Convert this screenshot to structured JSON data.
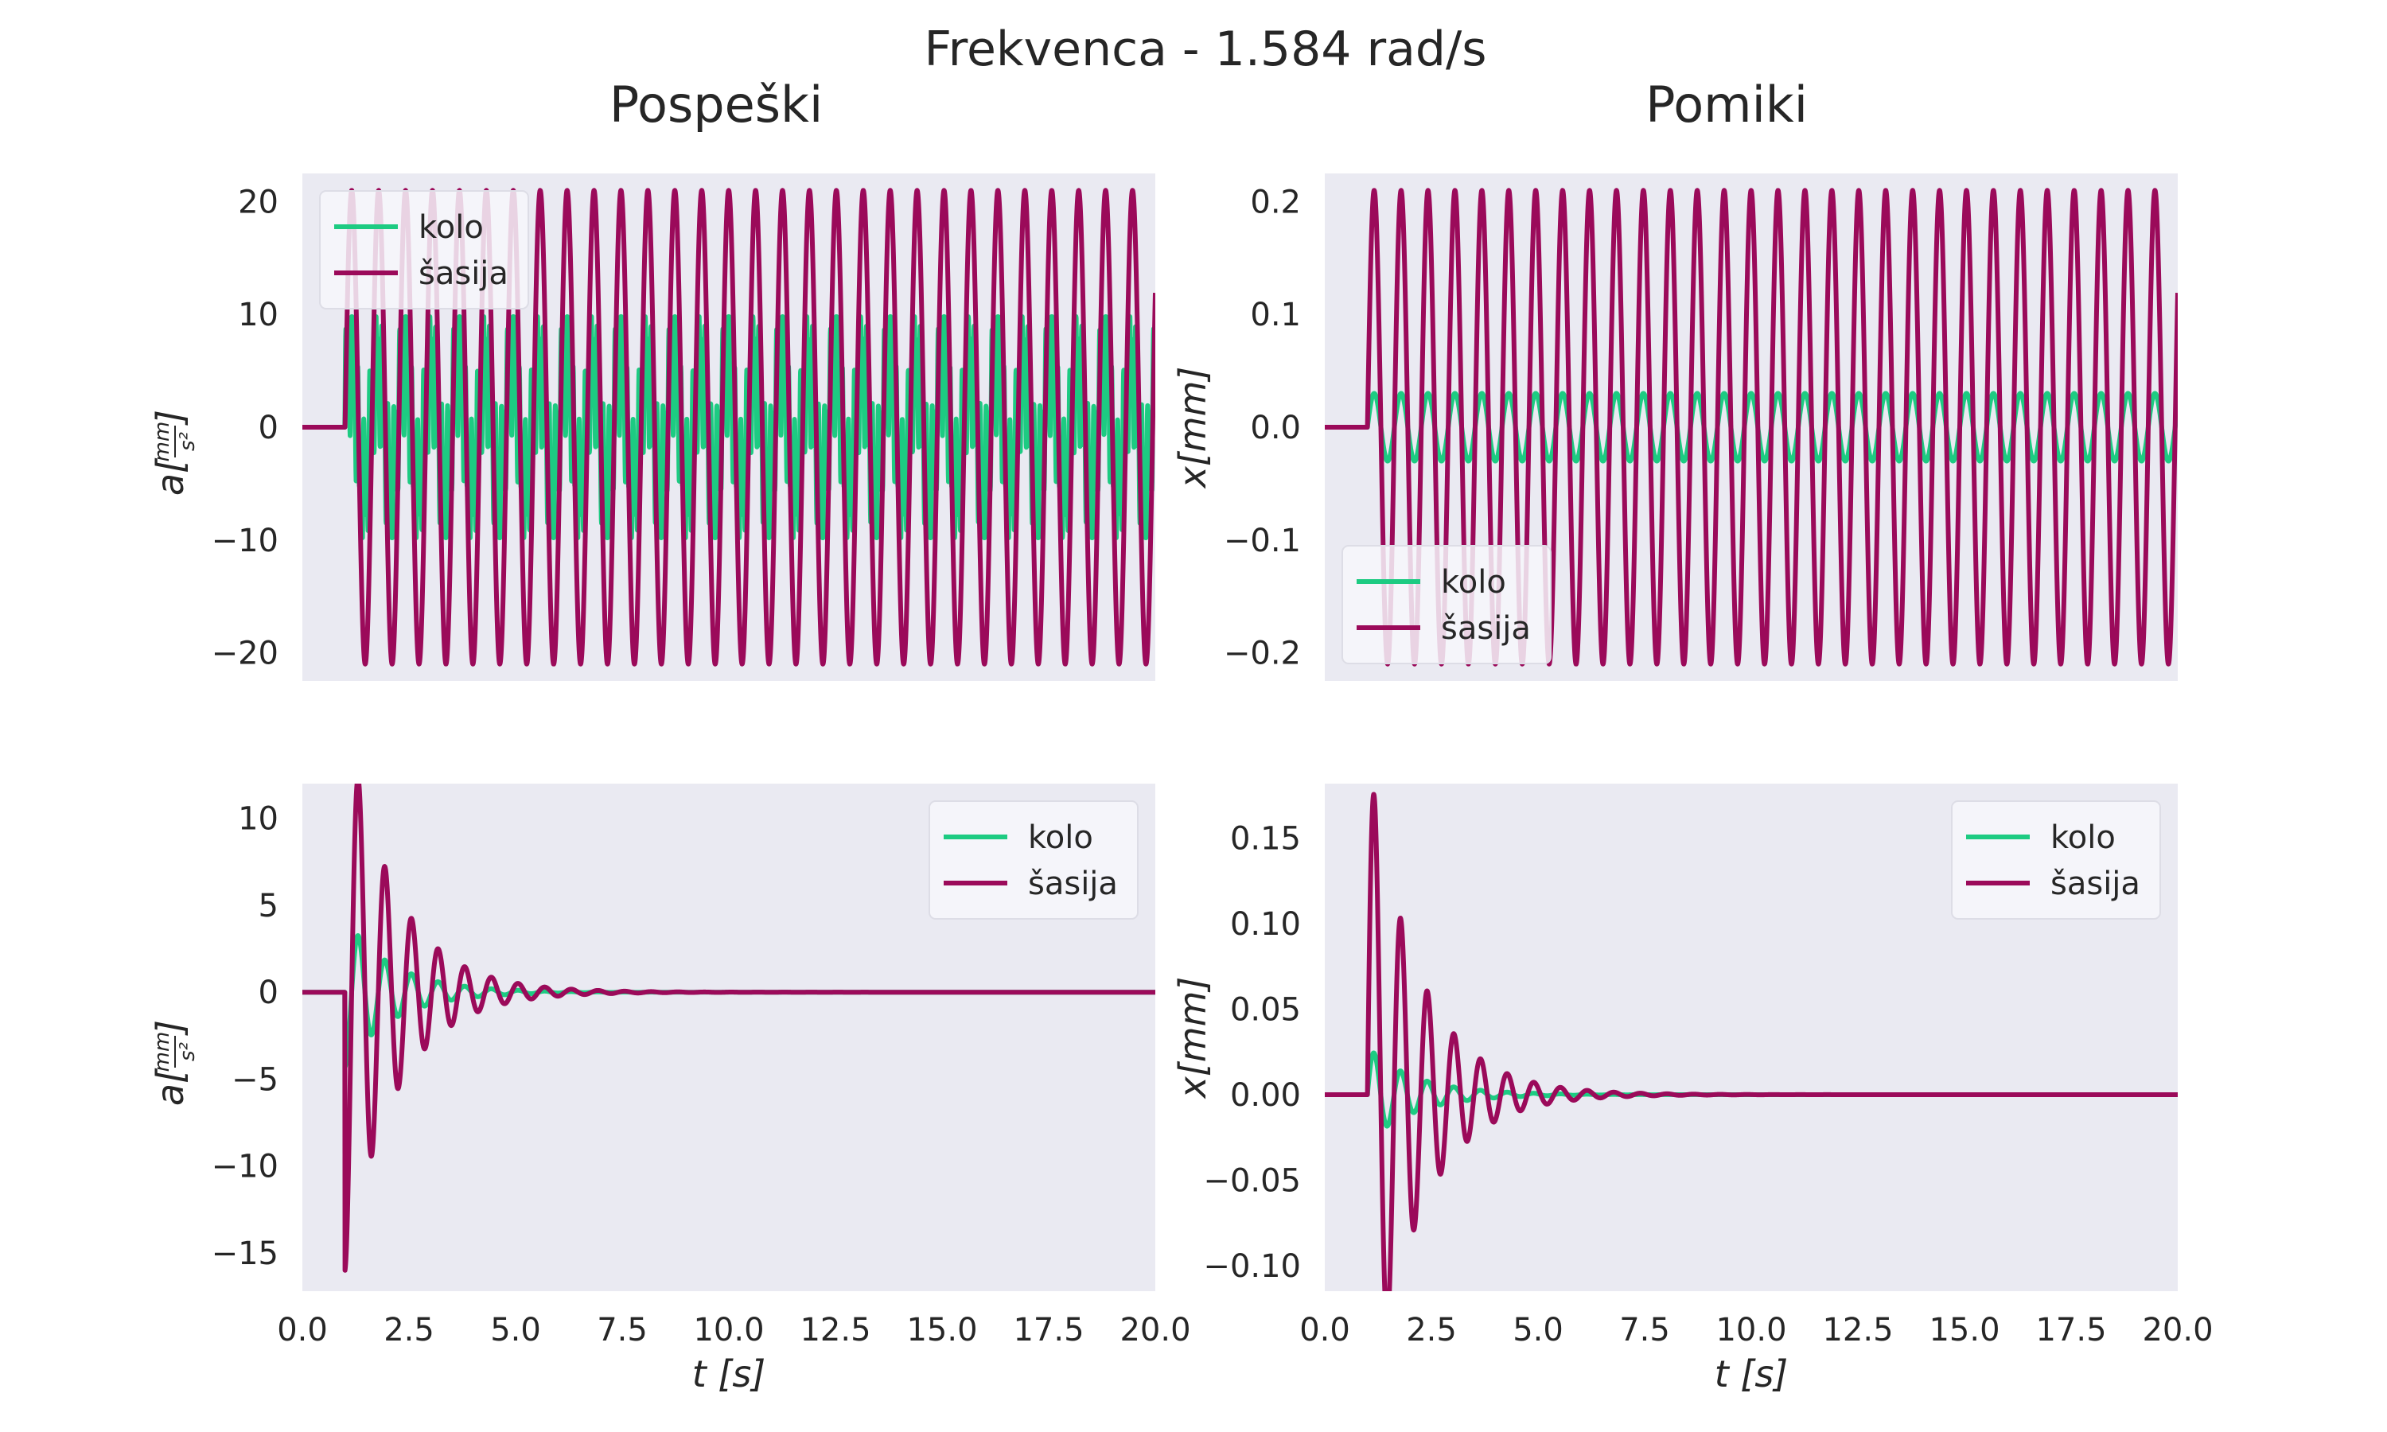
{
  "figure": {
    "suptitle": "Frekvenca - 1.584 rad/s",
    "col_titles": [
      "Pospeški",
      "Pomiki"
    ],
    "colors": {
      "background": "#ffffff",
      "axes_face": "#eaeaf2",
      "kolo": "#1dcb82",
      "sasija": "#9b0a5a",
      "text": "#262626",
      "legend_face": "#f7f7fb"
    }
  },
  "chart_data": [
    {
      "id": "top-left",
      "type": "line",
      "title": "",
      "ylabel_text": "a[",
      "ylabel_num": "mm",
      "ylabel_den": "s²",
      "ylabel_end": "]",
      "xlabel": "",
      "xlim": [
        0,
        20
      ],
      "ylim": [
        -22.5,
        22.5
      ],
      "xticks": [
        "0.0",
        "2.5",
        "5.0",
        "7.5",
        "10.0",
        "12.5",
        "15.0",
        "17.5",
        "20.0"
      ],
      "yticks": [
        -20,
        -10,
        0,
        10,
        20
      ],
      "ytick_labels": [
        "−20",
        "−10",
        "0",
        "10",
        "20"
      ],
      "show_xticklabels": false,
      "grid": false,
      "legend": {
        "placement": "top-left",
        "entries": [
          "kolo",
          "šasija"
        ]
      },
      "series": [
        {
          "name": "kolo",
          "model": "steady",
          "t0": 1.0,
          "amplitude": 9.8,
          "frequency_hz": 1.584,
          "phase": 0.3,
          "inner_amplitude": 5.5
        },
        {
          "name": "šasija",
          "model": "steady",
          "t0": 1.0,
          "amplitude": 21.0,
          "frequency_hz": 1.584,
          "phase": 0.0
        }
      ]
    },
    {
      "id": "top-right",
      "type": "line",
      "title": "",
      "ylabel_text": "x[mm]",
      "xlabel": "",
      "xlim": [
        0,
        20
      ],
      "ylim": [
        -0.225,
        0.225
      ],
      "xticks": [
        "0.0",
        "2.5",
        "5.0",
        "7.5",
        "10.0",
        "12.5",
        "15.0",
        "17.5",
        "20.0"
      ],
      "yticks": [
        -0.2,
        -0.1,
        0.0,
        0.1,
        0.2
      ],
      "ytick_labels": [
        "−0.2",
        "−0.1",
        "0.0",
        "0.1",
        "0.2"
      ],
      "show_xticklabels": false,
      "grid": false,
      "legend": {
        "placement": "lower-left",
        "entries": [
          "kolo",
          "šasija"
        ]
      },
      "series": [
        {
          "name": "kolo",
          "model": "steady-sin",
          "t0": 1.0,
          "amplitude": 0.03,
          "frequency_hz": 1.584,
          "phase": 0.0
        },
        {
          "name": "šasija",
          "model": "steady-sin",
          "t0": 1.0,
          "amplitude": 0.21,
          "frequency_hz": 1.584,
          "phase": 0.0
        }
      ]
    },
    {
      "id": "bottom-left",
      "type": "line",
      "title": "",
      "ylabel_text": "a[",
      "ylabel_num": "mm",
      "ylabel_den": "s²",
      "ylabel_end": "]",
      "xlabel": "t [s]",
      "xlim": [
        0,
        20
      ],
      "ylim": [
        -17.2,
        12.0
      ],
      "xticks": [
        "0.0",
        "2.5",
        "5.0",
        "7.5",
        "10.0",
        "12.5",
        "15.0",
        "17.5",
        "20.0"
      ],
      "yticks": [
        -15,
        -10,
        -5,
        0,
        5,
        10
      ],
      "ytick_labels": [
        "−15",
        "−10",
        "−5",
        "0",
        "5",
        "10"
      ],
      "show_xticklabels": true,
      "grid": false,
      "legend": {
        "placement": "top-right",
        "entries": [
          "kolo",
          "šasija"
        ]
      },
      "series": [
        {
          "name": "kolo",
          "model": "decay",
          "t0": 1.0,
          "amplitude": 4.3,
          "frequency_hz": 1.6,
          "damping": 0.9,
          "phase": 1.57
        },
        {
          "name": "šasija",
          "model": "decay",
          "t0": 1.0,
          "amplitude": 16.0,
          "frequency_hz": 1.6,
          "damping": 0.85,
          "phase": 1.57
        }
      ]
    },
    {
      "id": "bottom-right",
      "type": "line",
      "title": "",
      "ylabel_text": "x[mm]",
      "xlabel": "t [s]",
      "xlim": [
        0,
        20
      ],
      "ylim": [
        -0.115,
        0.182
      ],
      "xticks": [
        "0.0",
        "2.5",
        "5.0",
        "7.5",
        "10.0",
        "12.5",
        "15.0",
        "17.5",
        "20.0"
      ],
      "yticks": [
        -0.1,
        -0.05,
        0.0,
        0.05,
        0.1,
        0.15
      ],
      "ytick_labels": [
        "−0.10",
        "−0.05",
        "0.00",
        "0.05",
        "0.10",
        "0.15"
      ],
      "show_xticklabels": true,
      "grid": false,
      "legend": {
        "placement": "top-right",
        "entries": [
          "kolo",
          "šasija"
        ]
      },
      "series": [
        {
          "name": "kolo",
          "model": "decay-sin",
          "t0": 1.0,
          "amplitude": 0.028,
          "frequency_hz": 1.6,
          "damping": 0.9,
          "phase": 0.0
        },
        {
          "name": "šasija",
          "model": "decay-sin",
          "t0": 1.0,
          "amplitude": 0.2,
          "frequency_hz": 1.6,
          "damping": 0.85,
          "phase": 0.0
        }
      ]
    }
  ]
}
